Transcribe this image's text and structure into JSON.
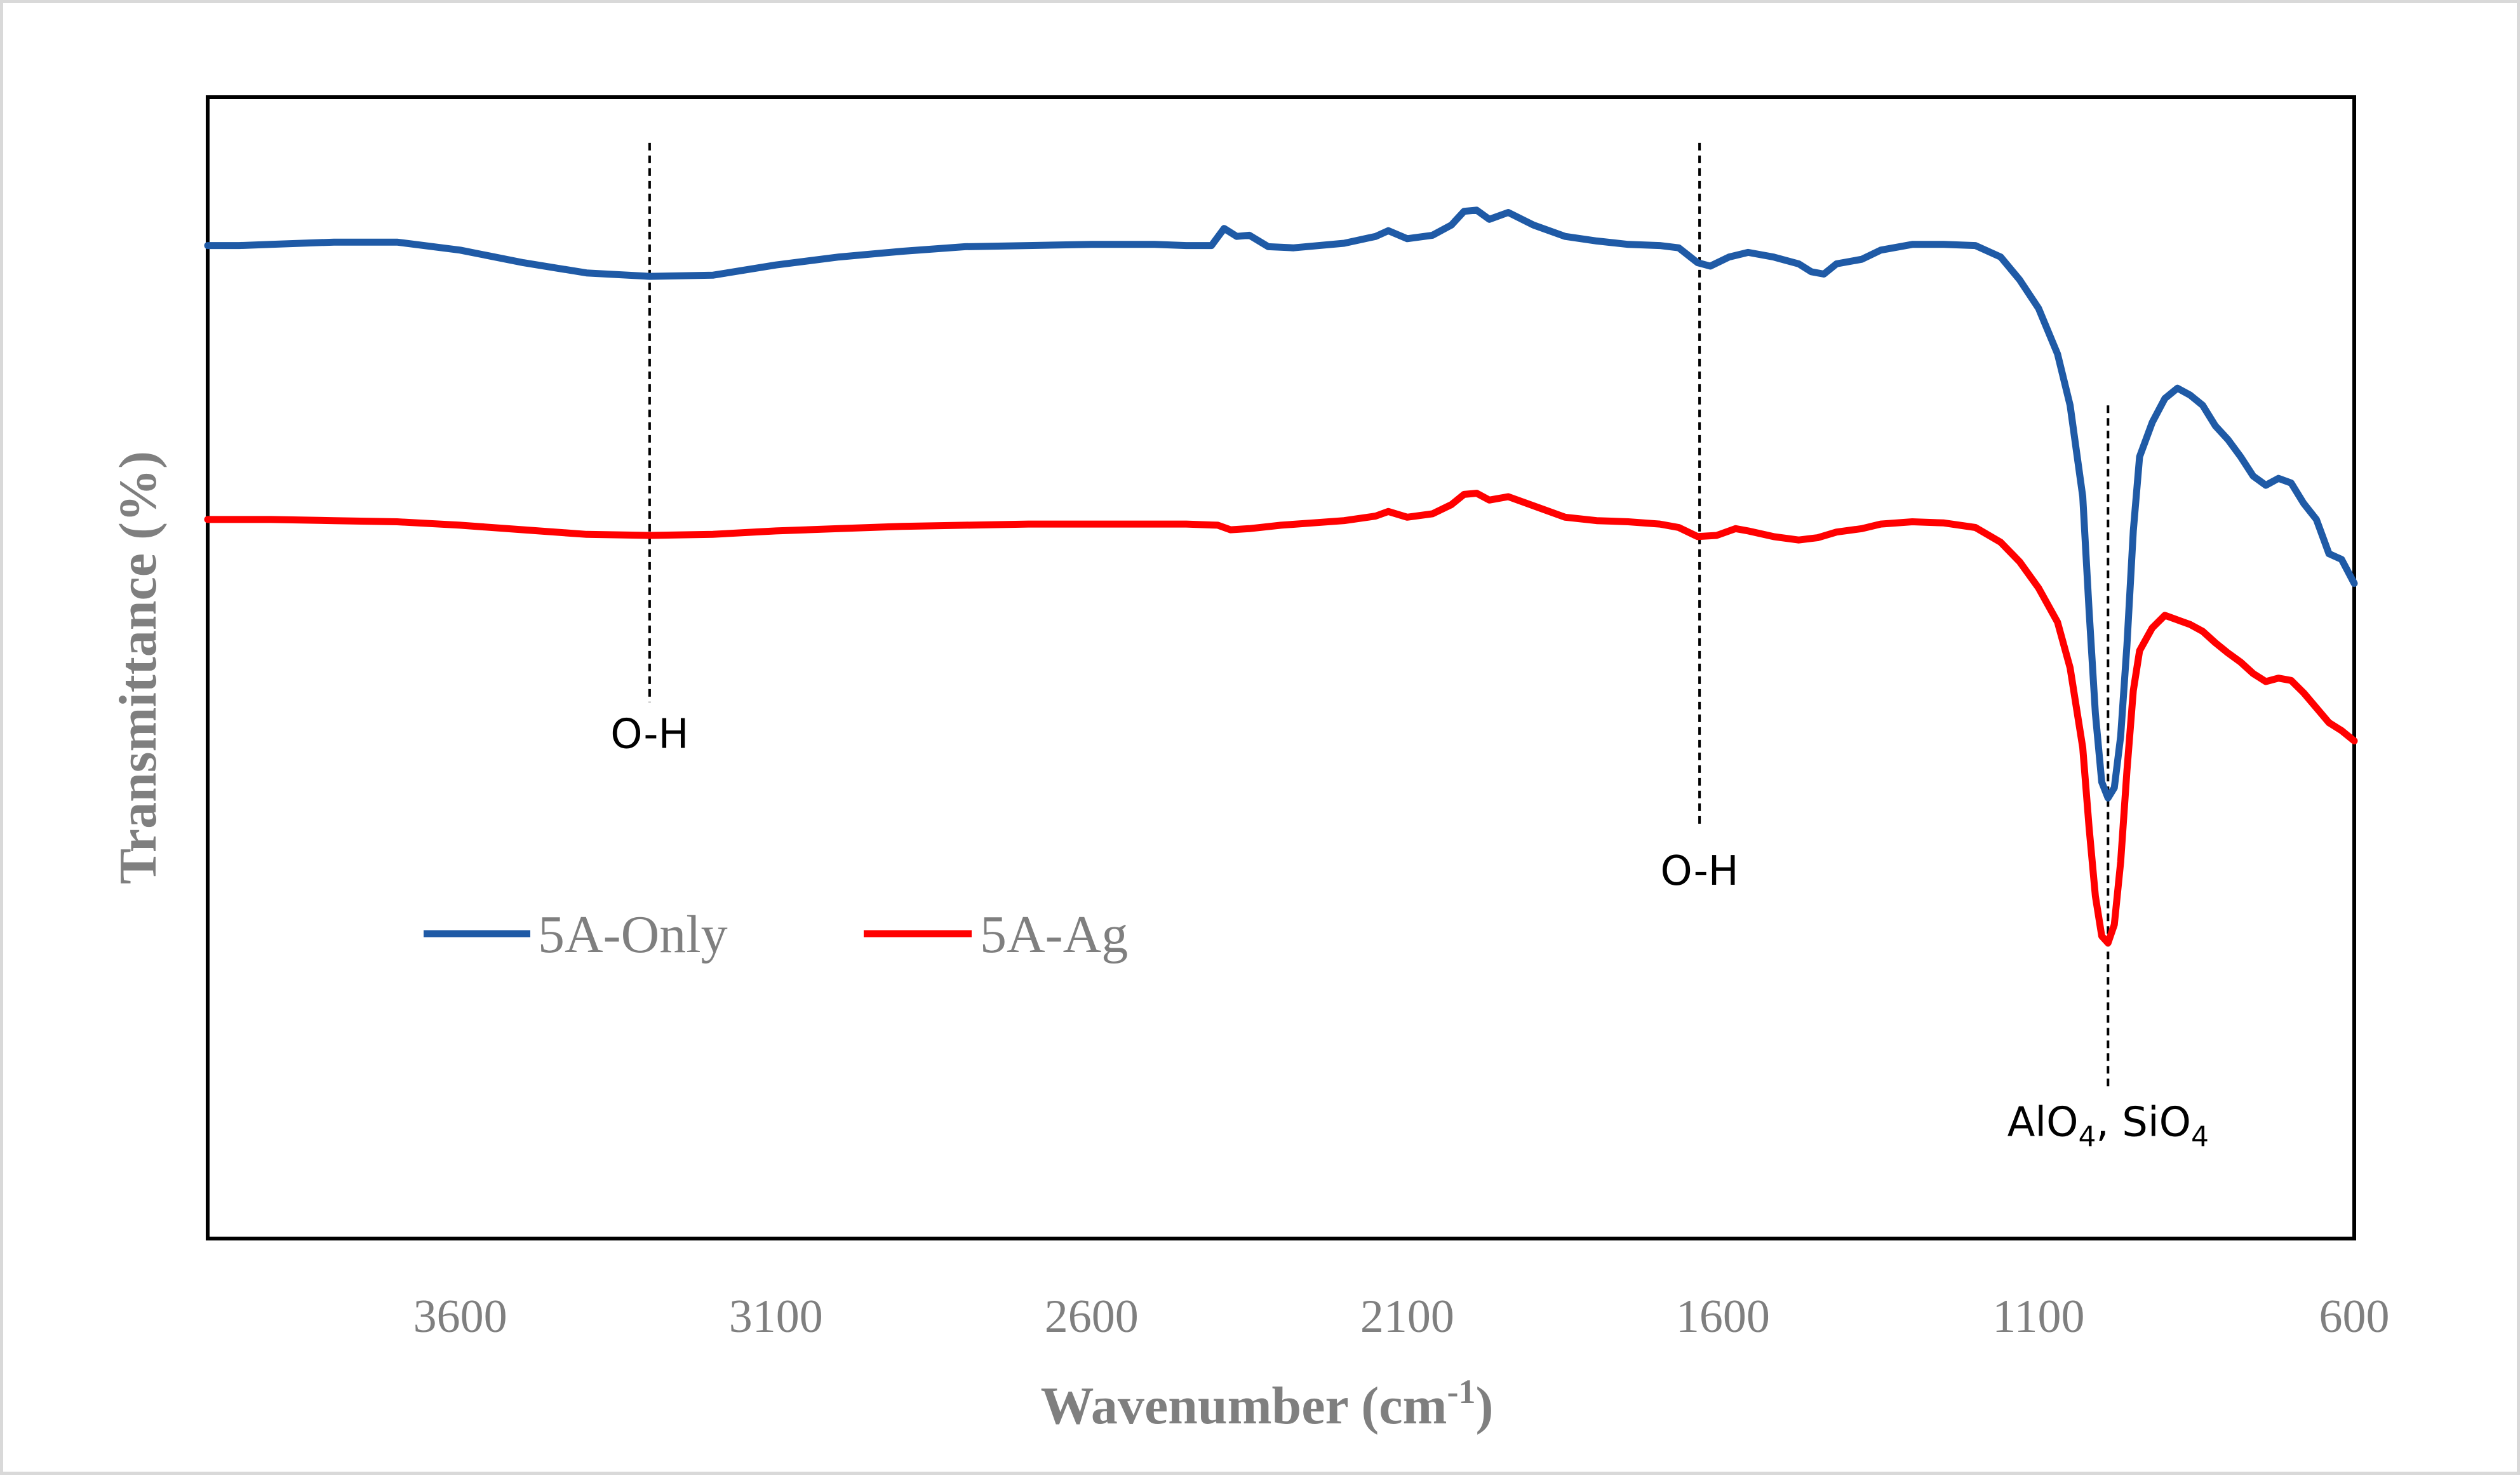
{
  "chart_data": {
    "type": "line",
    "title": "",
    "xlabel": {
      "main": "Wavenumber (cm",
      "sup": "-1",
      "close": ")"
    },
    "ylabel": "Transmittance (%)",
    "xlim": [
      4000,
      600
    ],
    "x_reversed": true,
    "ylim": [
      0,
      100
    ],
    "grid": false,
    "x_ticks": [
      "3600",
      "3100",
      "2600",
      "2100",
      "1600",
      "1100",
      "600"
    ],
    "legend_position": "left-middle",
    "series": [
      {
        "name": "5A-Only",
        "color": "#1f5aa6",
        "points": [
          [
            4000,
            87.0
          ],
          [
            3950,
            87.0
          ],
          [
            3900,
            87.1
          ],
          [
            3800,
            87.3
          ],
          [
            3700,
            87.3
          ],
          [
            3600,
            86.6
          ],
          [
            3500,
            85.5
          ],
          [
            3400,
            84.6
          ],
          [
            3300,
            84.3
          ],
          [
            3200,
            84.4
          ],
          [
            3100,
            85.3
          ],
          [
            3000,
            86.0
          ],
          [
            2900,
            86.5
          ],
          [
            2800,
            86.9
          ],
          [
            2700,
            87.0
          ],
          [
            2600,
            87.1
          ],
          [
            2500,
            87.1
          ],
          [
            2450,
            87.0
          ],
          [
            2410,
            87.0
          ],
          [
            2390,
            88.5
          ],
          [
            2370,
            87.8
          ],
          [
            2350,
            87.9
          ],
          [
            2320,
            86.9
          ],
          [
            2280,
            86.8
          ],
          [
            2200,
            87.2
          ],
          [
            2150,
            87.8
          ],
          [
            2130,
            88.3
          ],
          [
            2100,
            87.6
          ],
          [
            2060,
            87.9
          ],
          [
            2030,
            88.8
          ],
          [
            2010,
            90.0
          ],
          [
            1990,
            90.1
          ],
          [
            1970,
            89.3
          ],
          [
            1940,
            89.9
          ],
          [
            1900,
            88.8
          ],
          [
            1850,
            87.8
          ],
          [
            1800,
            87.4
          ],
          [
            1750,
            87.1
          ],
          [
            1700,
            87.0
          ],
          [
            1670,
            86.8
          ],
          [
            1640,
            85.5
          ],
          [
            1620,
            85.2
          ],
          [
            1590,
            86.0
          ],
          [
            1560,
            86.4
          ],
          [
            1520,
            86.0
          ],
          [
            1480,
            85.4
          ],
          [
            1460,
            84.7
          ],
          [
            1440,
            84.5
          ],
          [
            1420,
            85.4
          ],
          [
            1380,
            85.8
          ],
          [
            1350,
            86.6
          ],
          [
            1300,
            87.1
          ],
          [
            1250,
            87.1
          ],
          [
            1200,
            87.0
          ],
          [
            1160,
            86.0
          ],
          [
            1130,
            84.0
          ],
          [
            1100,
            81.5
          ],
          [
            1070,
            77.5
          ],
          [
            1050,
            73.0
          ],
          [
            1030,
            65.0
          ],
          [
            1020,
            55.0
          ],
          [
            1010,
            46.0
          ],
          [
            1000,
            40.0
          ],
          [
            990,
            38.6
          ],
          [
            980,
            39.5
          ],
          [
            970,
            44.0
          ],
          [
            960,
            52.0
          ],
          [
            950,
            62.0
          ],
          [
            940,
            68.5
          ],
          [
            920,
            71.5
          ],
          [
            900,
            73.6
          ],
          [
            880,
            74.5
          ],
          [
            860,
            73.9
          ],
          [
            840,
            73.0
          ],
          [
            820,
            71.2
          ],
          [
            800,
            70.0
          ],
          [
            780,
            68.5
          ],
          [
            760,
            66.8
          ],
          [
            740,
            66.0
          ],
          [
            720,
            66.6
          ],
          [
            700,
            66.2
          ],
          [
            680,
            64.4
          ],
          [
            660,
            63.0
          ],
          [
            650,
            61.5
          ],
          [
            640,
            60.0
          ],
          [
            620,
            59.5
          ],
          [
            600,
            57.4
          ]
        ]
      },
      {
        "name": "5A-Ag",
        "color": "#ff0000",
        "points": [
          [
            4000,
            63.0
          ],
          [
            3950,
            63.0
          ],
          [
            3900,
            63.0
          ],
          [
            3800,
            62.9
          ],
          [
            3700,
            62.8
          ],
          [
            3600,
            62.5
          ],
          [
            3500,
            62.1
          ],
          [
            3400,
            61.7
          ],
          [
            3300,
            61.6
          ],
          [
            3200,
            61.7
          ],
          [
            3100,
            62.0
          ],
          [
            3000,
            62.2
          ],
          [
            2900,
            62.4
          ],
          [
            2800,
            62.5
          ],
          [
            2700,
            62.6
          ],
          [
            2600,
            62.6
          ],
          [
            2500,
            62.6
          ],
          [
            2450,
            62.6
          ],
          [
            2400,
            62.5
          ],
          [
            2380,
            62.1
          ],
          [
            2350,
            62.2
          ],
          [
            2300,
            62.5
          ],
          [
            2250,
            62.7
          ],
          [
            2200,
            62.9
          ],
          [
            2150,
            63.3
          ],
          [
            2130,
            63.7
          ],
          [
            2100,
            63.2
          ],
          [
            2060,
            63.5
          ],
          [
            2030,
            64.3
          ],
          [
            2010,
            65.2
          ],
          [
            1990,
            65.3
          ],
          [
            1970,
            64.7
          ],
          [
            1940,
            65.0
          ],
          [
            1900,
            64.2
          ],
          [
            1850,
            63.2
          ],
          [
            1800,
            62.9
          ],
          [
            1750,
            62.8
          ],
          [
            1700,
            62.6
          ],
          [
            1670,
            62.3
          ],
          [
            1640,
            61.5
          ],
          [
            1610,
            61.6
          ],
          [
            1580,
            62.2
          ],
          [
            1560,
            62.0
          ],
          [
            1520,
            61.5
          ],
          [
            1480,
            61.2
          ],
          [
            1450,
            61.4
          ],
          [
            1420,
            61.9
          ],
          [
            1380,
            62.2
          ],
          [
            1350,
            62.6
          ],
          [
            1300,
            62.8
          ],
          [
            1250,
            62.7
          ],
          [
            1200,
            62.3
          ],
          [
            1160,
            61.0
          ],
          [
            1130,
            59.3
          ],
          [
            1100,
            57.0
          ],
          [
            1070,
            54.0
          ],
          [
            1050,
            50.0
          ],
          [
            1030,
            43.0
          ],
          [
            1020,
            36.0
          ],
          [
            1010,
            30.0
          ],
          [
            1000,
            26.5
          ],
          [
            990,
            25.9
          ],
          [
            980,
            27.5
          ],
          [
            970,
            33.0
          ],
          [
            960,
            41.0
          ],
          [
            950,
            48.0
          ],
          [
            940,
            51.5
          ],
          [
            920,
            53.5
          ],
          [
            900,
            54.6
          ],
          [
            880,
            54.2
          ],
          [
            860,
            53.8
          ],
          [
            840,
            53.2
          ],
          [
            820,
            52.2
          ],
          [
            800,
            51.3
          ],
          [
            780,
            50.5
          ],
          [
            760,
            49.5
          ],
          [
            740,
            48.8
          ],
          [
            720,
            49.1
          ],
          [
            700,
            48.9
          ],
          [
            680,
            47.8
          ],
          [
            660,
            46.5
          ],
          [
            640,
            45.2
          ],
          [
            620,
            44.5
          ],
          [
            600,
            43.6
          ]
        ]
      }
    ],
    "annotations": [
      {
        "label": "O-H",
        "x": 3300,
        "y_top": 96,
        "y_bottom": 47,
        "text_y": 43
      },
      {
        "label": "O-H",
        "x": 1637,
        "y_top": 96,
        "y_bottom": 36,
        "text_y": 31
      },
      {
        "label_parts": [
          "AlO",
          "4",
          ", SiO",
          "4"
        ],
        "x": 990,
        "y_top": 73,
        "y_bottom": 13,
        "text_y": 9
      }
    ]
  }
}
